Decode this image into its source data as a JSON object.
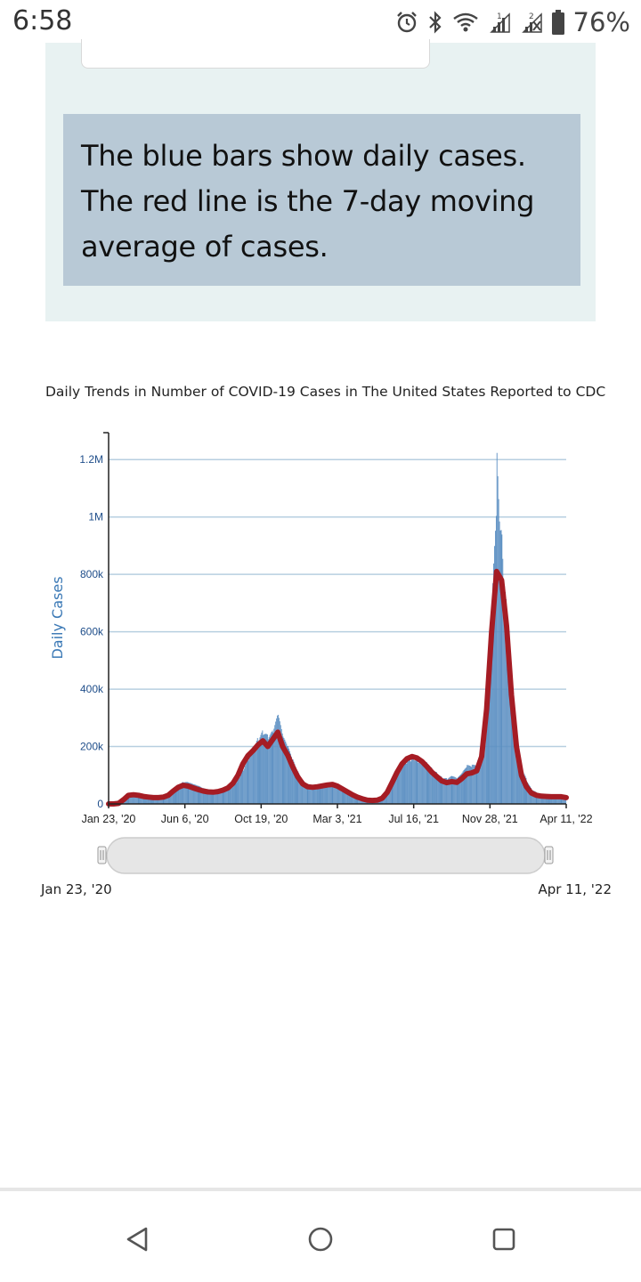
{
  "status_bar": {
    "time": "6:58",
    "battery_percent": "76%",
    "icons": [
      "alarm-icon",
      "bluetooth-icon",
      "wifi-icon",
      "signal-1-icon",
      "signal-2-icon",
      "battery-icon"
    ]
  },
  "info_panel": {
    "note": "The blue bars show daily cases. The red line is the 7-day moving average of cases."
  },
  "chart": {
    "title": "Daily Trends in Number of COVID-19 Cases in The United States Reported to CDC",
    "range_start": "Jan 23, '20",
    "range_end": "Apr 11, '22"
  },
  "chart_data": {
    "type": "bar",
    "title": "Daily Trends in Number of COVID-19 Cases in The United States Reported to CDC",
    "xlabel": "",
    "ylabel": "Daily Cases",
    "ylim": [
      0,
      1300000
    ],
    "y_ticks": [
      {
        "value": 0,
        "label": "0"
      },
      {
        "value": 200000,
        "label": "200k"
      },
      {
        "value": 400000,
        "label": "400k"
      },
      {
        "value": 600000,
        "label": "600k"
      },
      {
        "value": 800000,
        "label": "800k"
      },
      {
        "value": 1000000,
        "label": "1M"
      },
      {
        "value": 1200000,
        "label": "1.2M"
      }
    ],
    "x_ticks": [
      "Jan 23, '20",
      "Jun 6, '20",
      "Oct 19, '20",
      "Mar 3, '21",
      "Jul 16, '21",
      "Nov 28, '21",
      "Apr 11, '22"
    ],
    "grid": true,
    "legend": "none",
    "colors": {
      "bars": "#5b8fc2",
      "line": "#a51c24",
      "grid": "#b7cfe0"
    },
    "series": [
      {
        "type": "bar",
        "points": [
          [
            0,
            0
          ],
          [
            7,
            1000
          ],
          [
            14,
            5000
          ],
          [
            21,
            20000
          ],
          [
            28,
            30000
          ],
          [
            35,
            31000
          ],
          [
            42,
            28000
          ],
          [
            49,
            25000
          ],
          [
            56,
            24000
          ],
          [
            63,
            22000
          ],
          [
            70,
            21000
          ],
          [
            77,
            23000
          ],
          [
            84,
            30000
          ],
          [
            91,
            45000
          ],
          [
            98,
            60000
          ],
          [
            105,
            68000
          ],
          [
            112,
            66000
          ],
          [
            119,
            60000
          ],
          [
            126,
            55000
          ],
          [
            133,
            48000
          ],
          [
            140,
            45000
          ],
          [
            147,
            42000
          ],
          [
            154,
            44000
          ],
          [
            161,
            48000
          ],
          [
            168,
            55000
          ],
          [
            175,
            70000
          ],
          [
            182,
            95000
          ],
          [
            189,
            135000
          ],
          [
            196,
            170000
          ],
          [
            203,
            190000
          ],
          [
            210,
            215000
          ],
          [
            217,
            232000
          ],
          [
            224,
            210000
          ],
          [
            231,
            225000
          ],
          [
            238,
            275000
          ],
          [
            245,
            205000
          ],
          [
            252,
            175000
          ],
          [
            259,
            135000
          ],
          [
            266,
            100000
          ],
          [
            273,
            75000
          ],
          [
            280,
            65000
          ],
          [
            287,
            62000
          ],
          [
            294,
            63000
          ],
          [
            301,
            66000
          ],
          [
            308,
            68000
          ],
          [
            315,
            72000
          ],
          [
            322,
            65000
          ],
          [
            329,
            55000
          ],
          [
            336,
            45000
          ],
          [
            343,
            35000
          ],
          [
            350,
            27000
          ],
          [
            357,
            20000
          ],
          [
            364,
            14000
          ],
          [
            371,
            13000
          ],
          [
            378,
            13000
          ],
          [
            385,
            20000
          ],
          [
            392,
            40000
          ],
          [
            399,
            75000
          ],
          [
            406,
            115000
          ],
          [
            413,
            145000
          ],
          [
            420,
            165000
          ],
          [
            427,
            178000
          ],
          [
            434,
            170000
          ],
          [
            441,
            158000
          ],
          [
            448,
            138000
          ],
          [
            455,
            115000
          ],
          [
            462,
            98000
          ],
          [
            469,
            82000
          ],
          [
            476,
            78000
          ],
          [
            483,
            86000
          ],
          [
            490,
            78000
          ],
          [
            497,
            95000
          ],
          [
            504,
            118000
          ],
          [
            511,
            120000
          ],
          [
            518,
            128000
          ],
          [
            525,
            185000
          ],
          [
            532,
            380000
          ],
          [
            539,
            680000
          ],
          [
            546,
            1260000
          ],
          [
            553,
            1020000
          ],
          [
            560,
            700000
          ],
          [
            567,
            400000
          ],
          [
            574,
            220000
          ],
          [
            581,
            120000
          ],
          [
            588,
            75000
          ],
          [
            595,
            45000
          ],
          [
            602,
            35000
          ],
          [
            609,
            30000
          ],
          [
            616,
            28000
          ],
          [
            623,
            27000
          ],
          [
            630,
            26000
          ],
          [
            637,
            22000
          ],
          [
            644,
            20000
          ]
        ]
      },
      {
        "type": "line",
        "name": "7-day moving average",
        "points": [
          [
            0,
            0
          ],
          [
            7,
            0
          ],
          [
            14,
            2000
          ],
          [
            21,
            15000
          ],
          [
            28,
            30000
          ],
          [
            35,
            32000
          ],
          [
            42,
            30000
          ],
          [
            49,
            26000
          ],
          [
            56,
            24000
          ],
          [
            63,
            22000
          ],
          [
            70,
            22000
          ],
          [
            77,
            24000
          ],
          [
            84,
            30000
          ],
          [
            91,
            45000
          ],
          [
            98,
            58000
          ],
          [
            105,
            65000
          ],
          [
            112,
            62000
          ],
          [
            119,
            56000
          ],
          [
            126,
            50000
          ],
          [
            133,
            45000
          ],
          [
            140,
            42000
          ],
          [
            147,
            41000
          ],
          [
            154,
            43000
          ],
          [
            161,
            48000
          ],
          [
            168,
            56000
          ],
          [
            175,
            72000
          ],
          [
            182,
            100000
          ],
          [
            189,
            140000
          ],
          [
            196,
            168000
          ],
          [
            203,
            185000
          ],
          [
            210,
            205000
          ],
          [
            217,
            220000
          ],
          [
            224,
            200000
          ],
          [
            231,
            225000
          ],
          [
            238,
            250000
          ],
          [
            245,
            200000
          ],
          [
            252,
            170000
          ],
          [
            259,
            130000
          ],
          [
            266,
            95000
          ],
          [
            273,
            70000
          ],
          [
            280,
            60000
          ],
          [
            287,
            58000
          ],
          [
            294,
            60000
          ],
          [
            301,
            63000
          ],
          [
            308,
            66000
          ],
          [
            315,
            68000
          ],
          [
            322,
            62000
          ],
          [
            329,
            52000
          ],
          [
            336,
            42000
          ],
          [
            343,
            32000
          ],
          [
            350,
            24000
          ],
          [
            357,
            18000
          ],
          [
            364,
            13000
          ],
          [
            371,
            12000
          ],
          [
            378,
            13000
          ],
          [
            385,
            20000
          ],
          [
            392,
            40000
          ],
          [
            399,
            75000
          ],
          [
            406,
            110000
          ],
          [
            413,
            140000
          ],
          [
            420,
            158000
          ],
          [
            427,
            165000
          ],
          [
            434,
            160000
          ],
          [
            441,
            148000
          ],
          [
            448,
            130000
          ],
          [
            455,
            110000
          ],
          [
            462,
            95000
          ],
          [
            469,
            80000
          ],
          [
            476,
            74000
          ],
          [
            483,
            78000
          ],
          [
            490,
            75000
          ],
          [
            497,
            88000
          ],
          [
            504,
            105000
          ],
          [
            511,
            108000
          ],
          [
            518,
            115000
          ],
          [
            525,
            165000
          ],
          [
            532,
            330000
          ],
          [
            539,
            600000
          ],
          [
            546,
            810000
          ],
          [
            553,
            780000
          ],
          [
            560,
            620000
          ],
          [
            567,
            380000
          ],
          [
            574,
            200000
          ],
          [
            581,
            100000
          ],
          [
            588,
            60000
          ],
          [
            595,
            38000
          ],
          [
            602,
            30000
          ],
          [
            609,
            27000
          ],
          [
            616,
            26000
          ],
          [
            623,
            25000
          ],
          [
            630,
            25000
          ],
          [
            637,
            25000
          ],
          [
            644,
            22000
          ]
        ]
      }
    ]
  },
  "nav_bar": {
    "buttons": [
      "back-icon",
      "home-icon",
      "recents-icon"
    ]
  }
}
